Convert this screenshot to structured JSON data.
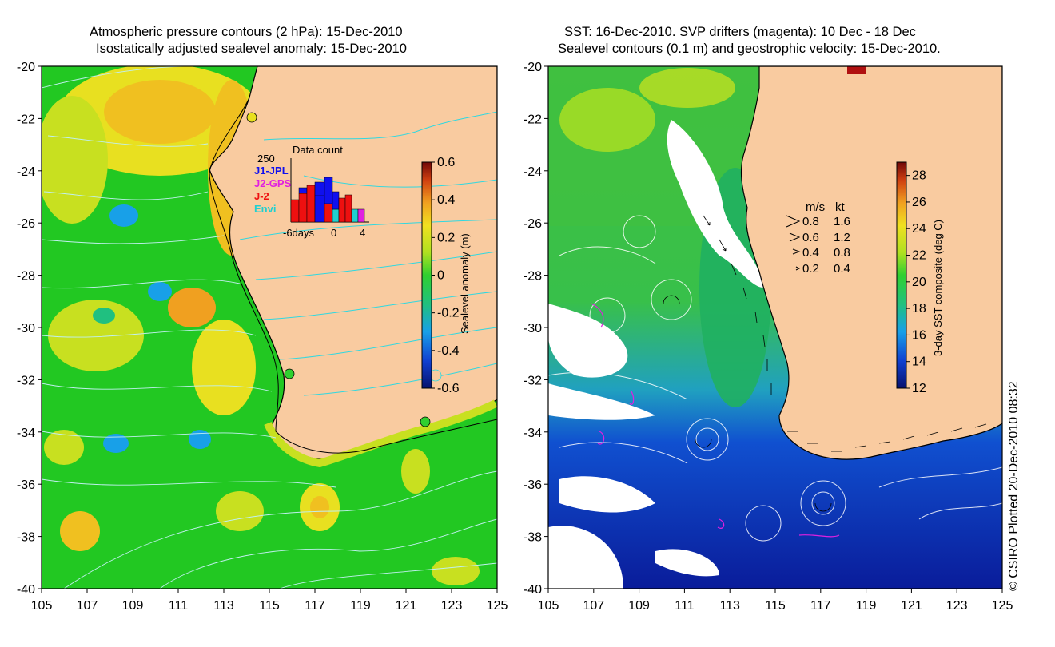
{
  "left_panel": {
    "title_line1": "Atmospheric pressure contours (2 hPa): 15-Dec-2010",
    "title_line2": "Isostatically adjusted sealevel anomaly: 15-Dec-2010",
    "lon_ticks": [
      "105",
      "107",
      "109",
      "111",
      "113",
      "115",
      "117",
      "119",
      "121",
      "123",
      "125"
    ],
    "lat_ticks": [
      "-20",
      "-22",
      "-24",
      "-26",
      "-28",
      "-30",
      "-32",
      "-34",
      "-36",
      "-38",
      "-40"
    ],
    "inset": {
      "ymax": "250",
      "title": "Data count",
      "series": [
        {
          "name": "J1-JPL",
          "color": "#1010ee"
        },
        {
          "name": "J2-GPS",
          "color": "#e020e0"
        },
        {
          "name": "J-2",
          "color": "#ee1010"
        },
        {
          "name": "Envi",
          "color": "#20d0d0"
        }
      ],
      "x_label_left": "-6days",
      "x_label_mid": "0",
      "x_label_right": "4"
    },
    "colorbar": {
      "label": "Sealevel anomaly (m)",
      "ticks": [
        "0.6",
        "0.4",
        "0.2",
        "0",
        "-0.2",
        "-0.4",
        "-0.6"
      ],
      "range": [
        -0.6,
        0.6
      ]
    }
  },
  "right_panel": {
    "title_line1": "SST: 16-Dec-2010. SVP drifters (magenta): 10 Dec - 18 Dec",
    "title_line2": "Sealevel contours (0.1 m) and geostrophic velocity: 15-Dec-2010.",
    "lon_ticks": [
      "105",
      "107",
      "109",
      "111",
      "113",
      "115",
      "117",
      "119",
      "121",
      "123",
      "125"
    ],
    "lat_ticks": [
      "-20",
      "-22",
      "-24",
      "-26",
      "-28",
      "-30",
      "-32",
      "-34",
      "-36",
      "-38",
      "-40"
    ],
    "velocity_legend": {
      "header_ms": "m/s",
      "header_kt": "kt",
      "rows": [
        {
          "ms": "0.8",
          "kt": "1.6"
        },
        {
          "ms": "0.6",
          "kt": "1.2"
        },
        {
          "ms": "0.4",
          "kt": "0.8"
        },
        {
          "ms": "0.2",
          "kt": "0.4"
        }
      ]
    },
    "colorbar": {
      "label": "3-day SST composite (deg C)",
      "ticks": [
        "28",
        "26",
        "24",
        "22",
        "20",
        "18",
        "16",
        "14",
        "12"
      ],
      "range": [
        12,
        29
      ]
    }
  },
  "credit": "© CSIRO Plotted 20-Dec-2010 08:32",
  "colors": {
    "land": "#f9cba0",
    "ssl_ocean": "#22c822",
    "sst_warm": "#4cc040",
    "sst_cold": "#1030b0"
  }
}
